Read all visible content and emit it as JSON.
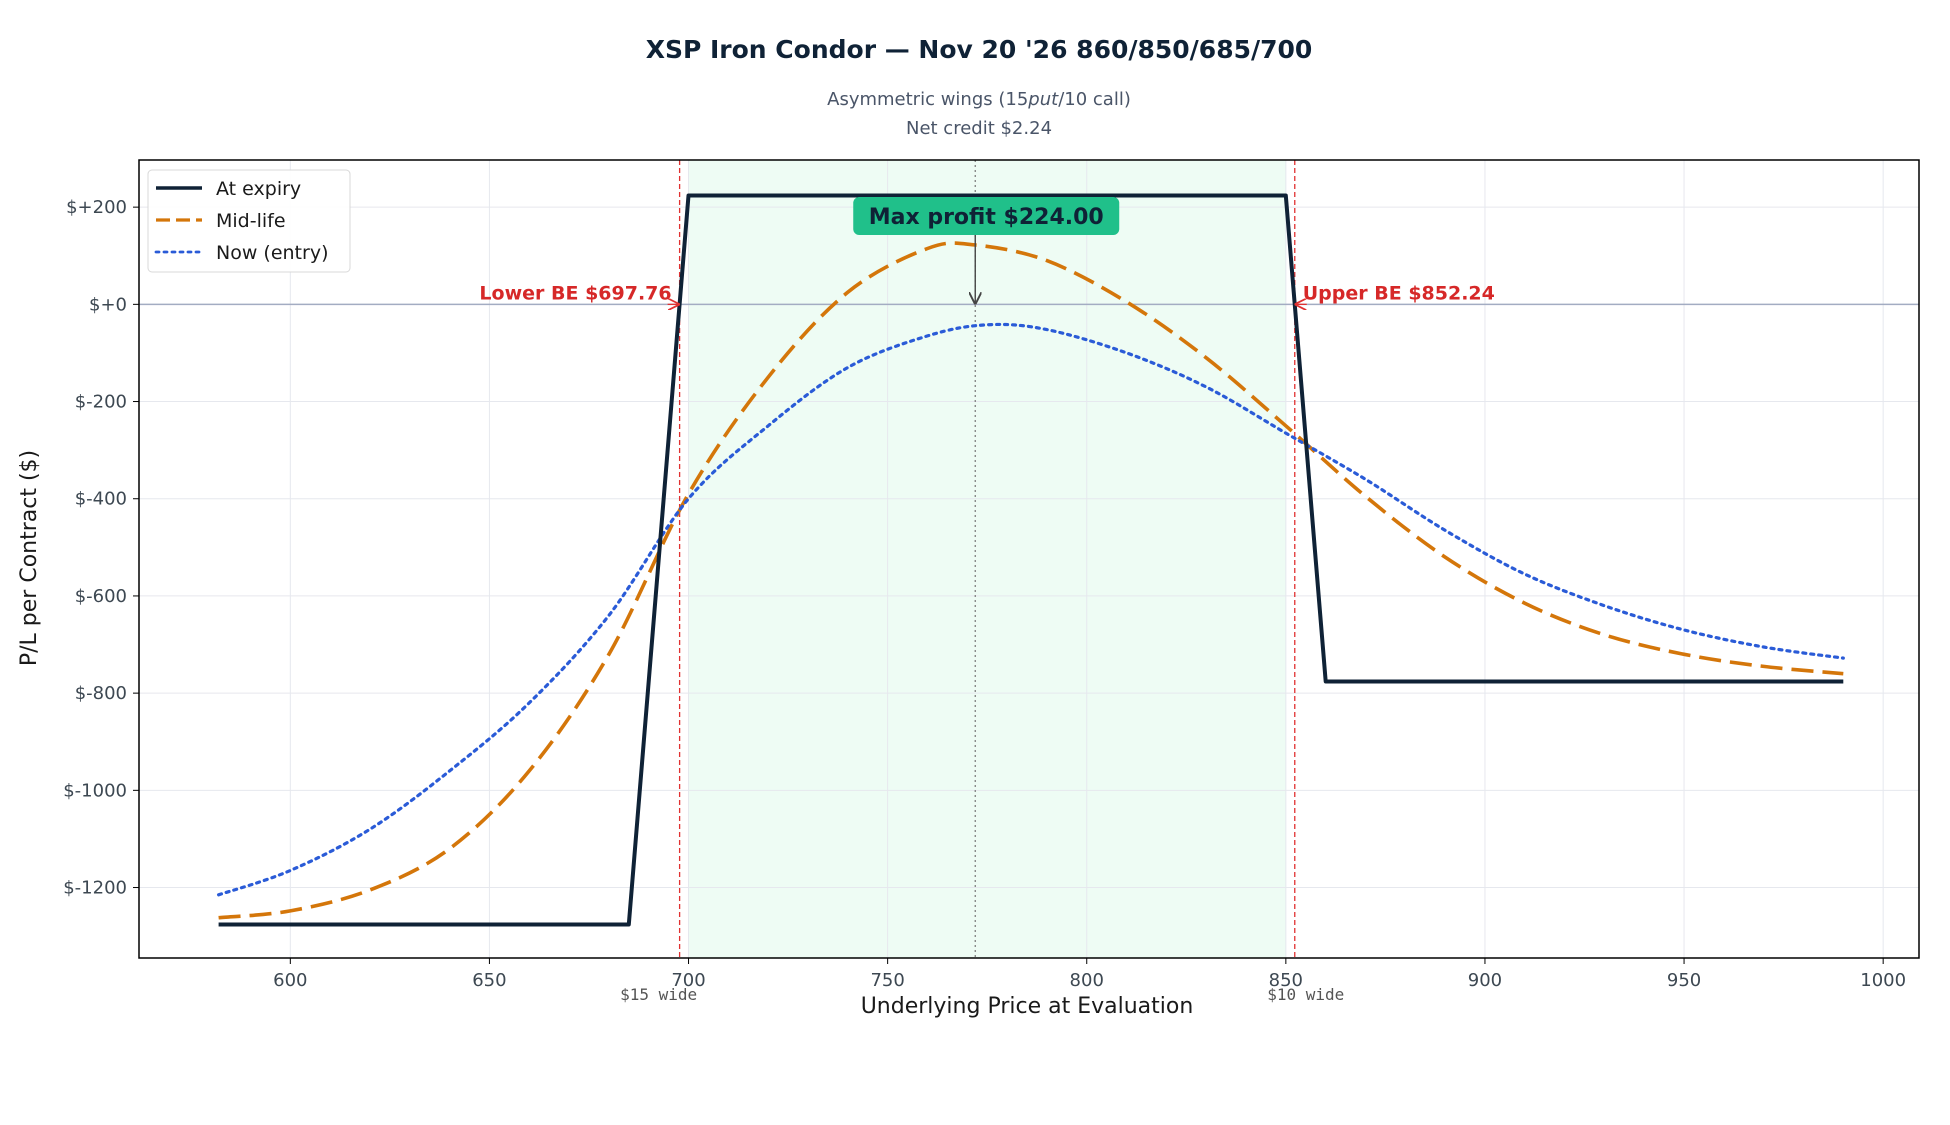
{
  "chart_data": {
    "type": "line",
    "title": "XSP Iron Condor — Nov 20 '26 860/850/685/700",
    "subtitle_line1": "Asymmetric wings (15$put/10$ call)",
    "subtitle_line1_parts": [
      "Asymmetric wings (15",
      "put",
      "/10 call)"
    ],
    "subtitle_line2": "Net credit $2.24",
    "xlabel": "Underlying Price at Evaluation",
    "ylabel": "P/L per Contract ($)",
    "xlim": [
      562,
      1009
    ],
    "ylim": [
      -1345,
      297
    ],
    "xticks": [
      600,
      650,
      700,
      750,
      800,
      850,
      900,
      950,
      1000
    ],
    "xtick_labels": [
      "600",
      "650",
      "700",
      "750",
      "800",
      "850",
      "900",
      "950",
      "1000"
    ],
    "yticks": [
      200,
      0,
      -200,
      -400,
      -600,
      -800,
      -1000,
      -1200
    ],
    "ytick_labels": [
      "$+200",
      "$+0",
      "$-200",
      "$-400",
      "$-600",
      "$-800",
      "$-1000",
      "$-1200"
    ],
    "grid": true,
    "legend_position": "top-left",
    "colors": {
      "expiry": "#0f2236",
      "midlife": "#d4760a",
      "now": "#2a5bd7",
      "breakeven": "#e03131",
      "profit_zone": "#eefcf4",
      "max_box": "#20c08a",
      "zero_line": "#a3acc2"
    },
    "series": [
      {
        "name": "At expiry",
        "style": "solid",
        "points": [
          [
            582,
            -1276
          ],
          [
            685,
            -1276
          ],
          [
            700,
            224
          ],
          [
            850,
            224
          ],
          [
            860,
            -776
          ],
          [
            990,
            -776
          ]
        ]
      },
      {
        "name": "Mid-life",
        "style": "dashed",
        "points": [
          [
            582,
            -1262
          ],
          [
            600,
            -1248
          ],
          [
            620,
            -1205
          ],
          [
            640,
            -1120
          ],
          [
            660,
            -960
          ],
          [
            680,
            -720
          ],
          [
            700,
            -390
          ],
          [
            720,
            -150
          ],
          [
            740,
            25
          ],
          [
            760,
            115
          ],
          [
            772,
            122
          ],
          [
            790,
            90
          ],
          [
            810,
            5
          ],
          [
            830,
            -110
          ],
          [
            850,
            -250
          ],
          [
            870,
            -395
          ],
          [
            890,
            -520
          ],
          [
            910,
            -615
          ],
          [
            930,
            -680
          ],
          [
            950,
            -720
          ],
          [
            970,
            -745
          ],
          [
            990,
            -760
          ]
        ]
      },
      {
        "name": "Now (entry)",
        "style": "dotted",
        "points": [
          [
            582,
            -1215
          ],
          [
            600,
            -1165
          ],
          [
            620,
            -1080
          ],
          [
            640,
            -960
          ],
          [
            660,
            -820
          ],
          [
            680,
            -640
          ],
          [
            700,
            -400
          ],
          [
            720,
            -250
          ],
          [
            740,
            -130
          ],
          [
            760,
            -65
          ],
          [
            775,
            -42
          ],
          [
            790,
            -52
          ],
          [
            810,
            -100
          ],
          [
            830,
            -170
          ],
          [
            850,
            -265
          ],
          [
            870,
            -360
          ],
          [
            890,
            -465
          ],
          [
            910,
            -555
          ],
          [
            930,
            -620
          ],
          [
            950,
            -670
          ],
          [
            970,
            -705
          ],
          [
            990,
            -728
          ]
        ]
      }
    ],
    "breakevens": [
      {
        "label": "Lower BE $697.76",
        "x": 697.76
      },
      {
        "label": "Upper BE $852.24",
        "x": 852.24
      }
    ],
    "max_profit": {
      "label": "Max profit $224.00",
      "x": 772,
      "y": 224
    },
    "profit_zone": [
      700,
      850
    ],
    "wing_labels": [
      {
        "label": "$15 wide",
        "x": 692.5
      },
      {
        "label": "$10 wide",
        "x": 855
      }
    ]
  }
}
